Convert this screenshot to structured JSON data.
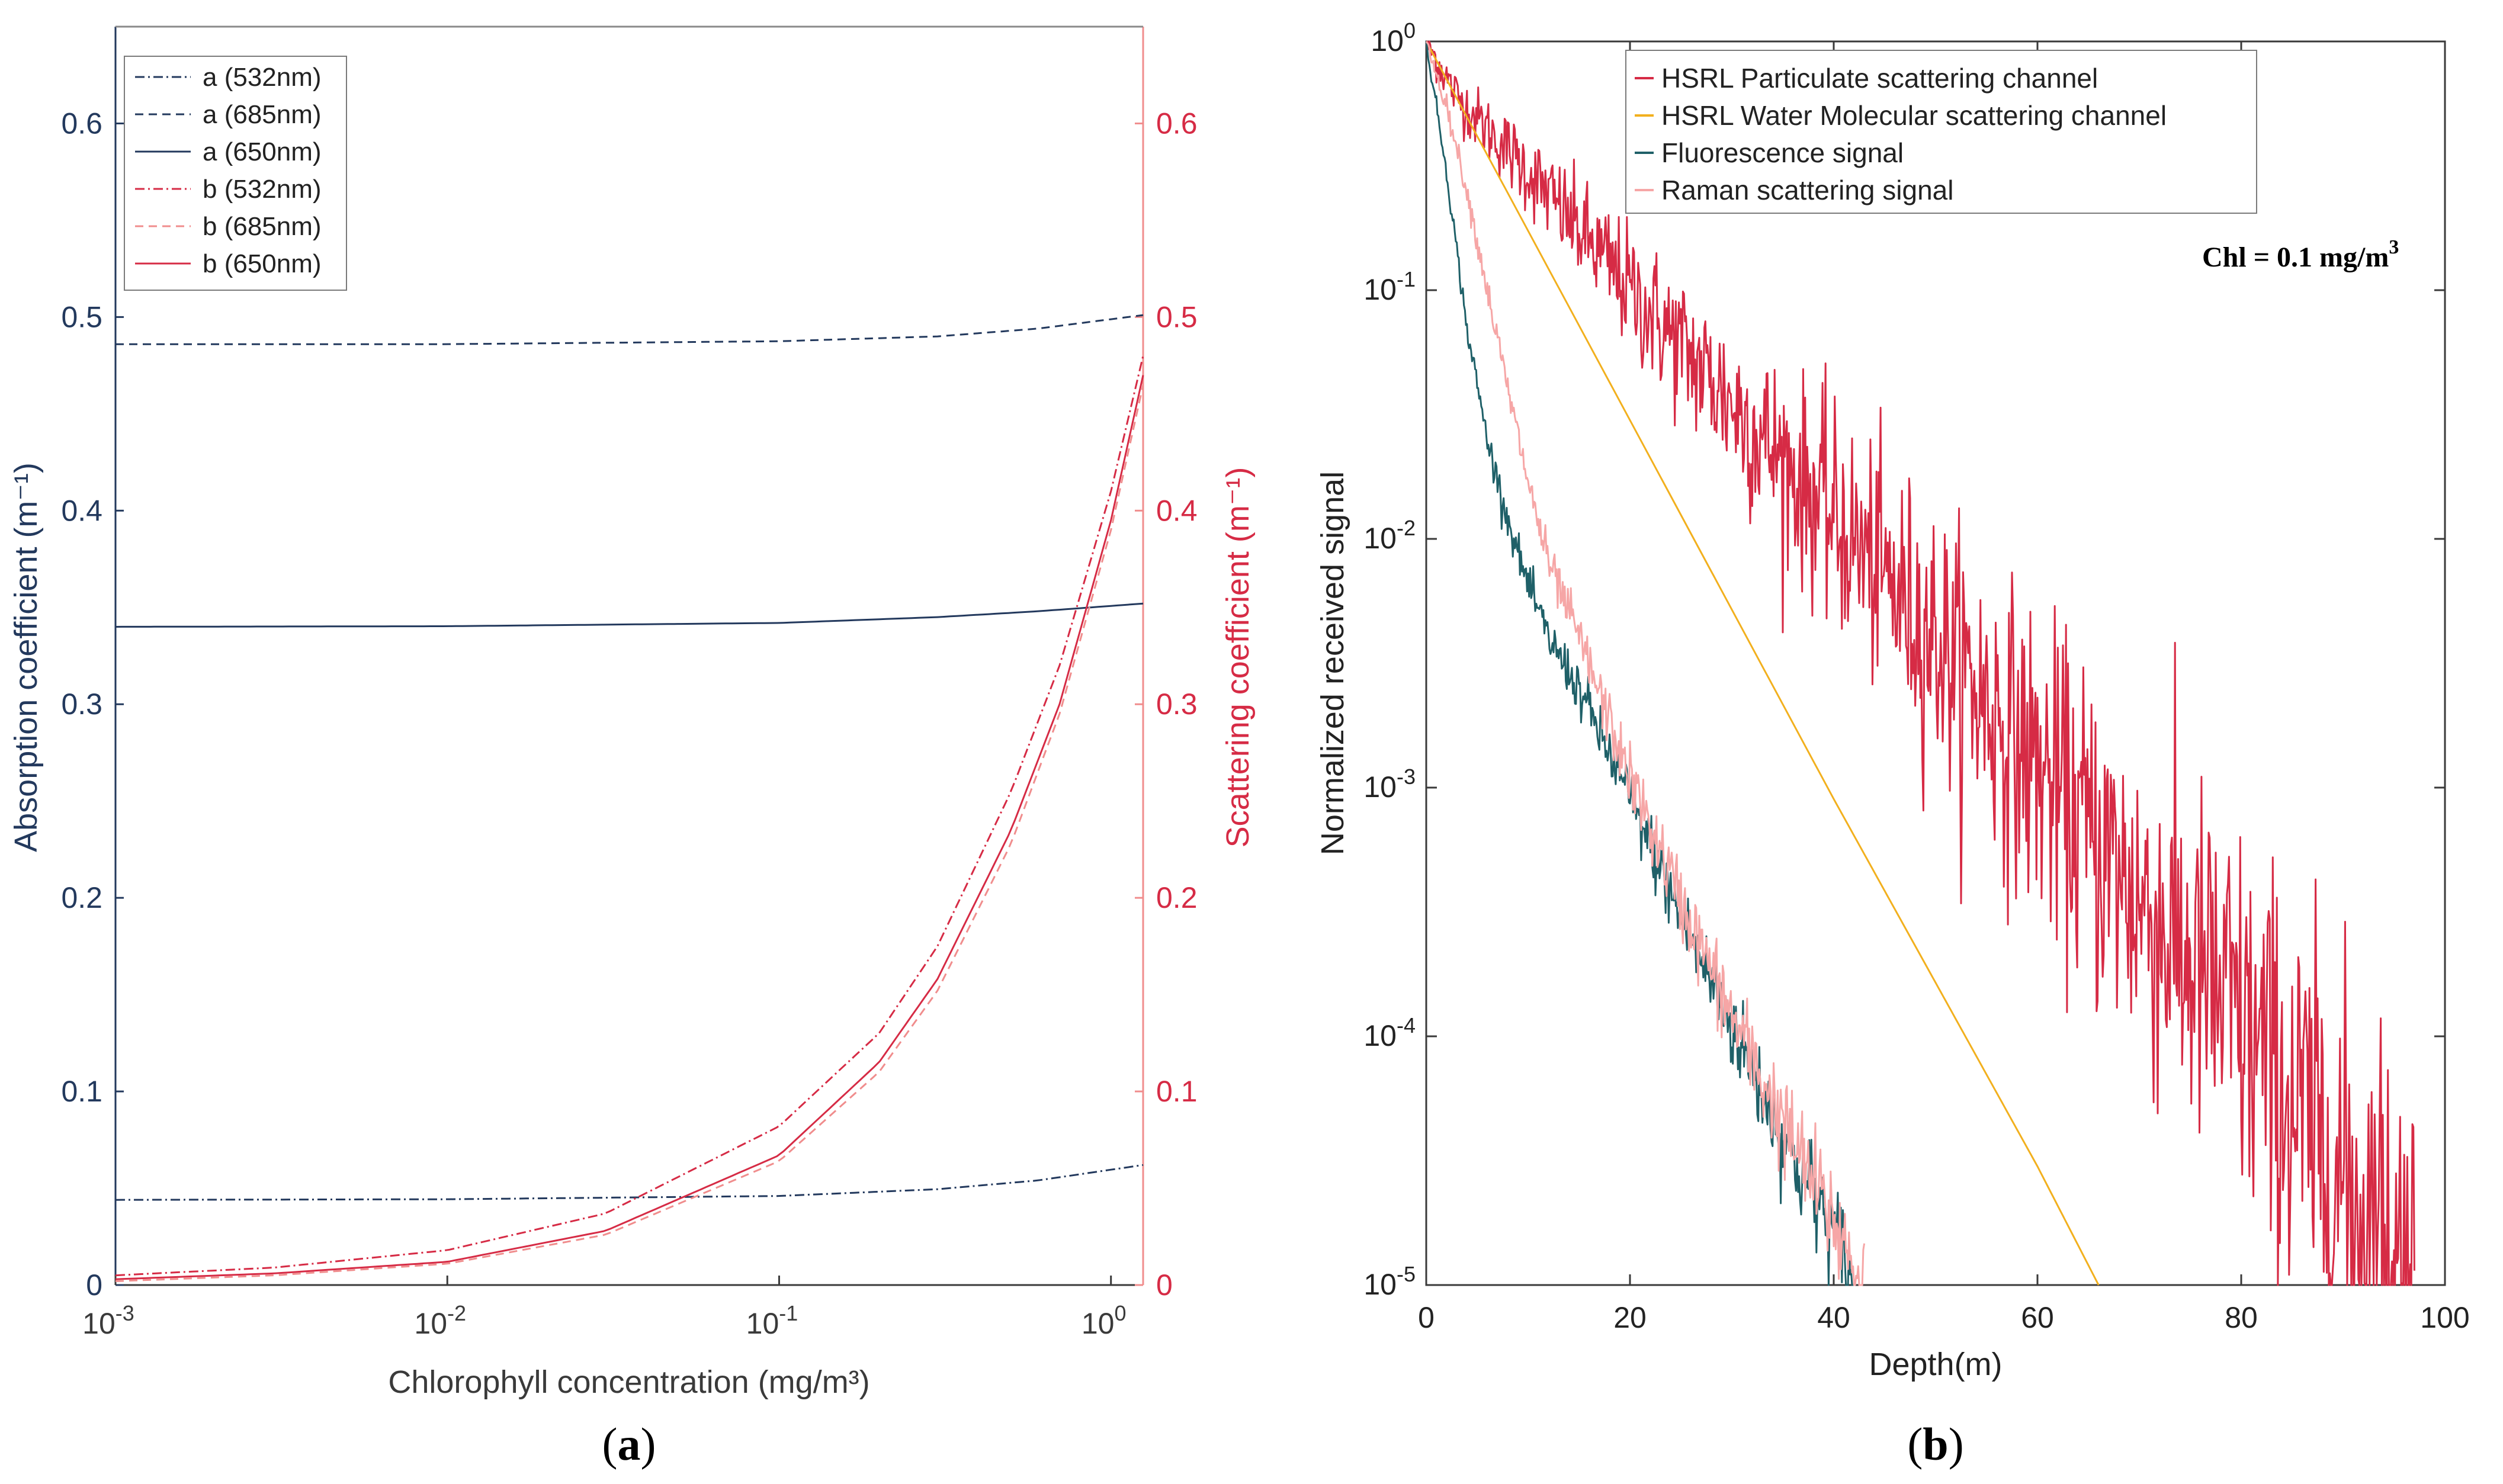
{
  "colors": {
    "navy": "#23395d",
    "red": "#d62b45",
    "pink": "#f08d8d",
    "orange": "#f2b01e",
    "teal": "#1f6068",
    "lightpink": "#f6a6a6",
    "axis_gray": "#3a3a3a"
  },
  "chart_data": [
    {
      "type": "line",
      "panel_label": "a",
      "x_scale": "log",
      "xlabel": "Chlorophyll concentration (mg/m³)",
      "ylabel_left": "Absorption coefficient (m⁻¹)",
      "ylabel_right": "Scattering coefficient (m⁻¹)",
      "xlim": [
        0.001,
        1.25
      ],
      "ylim": [
        0,
        0.65
      ],
      "x_ticks": [
        {
          "value": 0.001,
          "base": "10",
          "exp": "-3"
        },
        {
          "value": 0.01,
          "base": "10",
          "exp": "-2"
        },
        {
          "value": 0.1,
          "base": "10",
          "exp": "-1"
        },
        {
          "value": 1,
          "base": "10",
          "exp": "0"
        }
      ],
      "y_ticks": [
        0,
        0.1,
        0.2,
        0.3,
        0.4,
        0.5,
        0.6
      ],
      "y_tick_labels": [
        "0",
        "0.1",
        "0.2",
        "0.3",
        "0.4",
        "0.5",
        "0.6"
      ],
      "legend_position": "top-left",
      "series": [
        {
          "name": "a (532nm)",
          "axis": "left",
          "color": "#23395d",
          "dash": "dashdot",
          "x": [
            0.001,
            0.01,
            0.1,
            0.3,
            0.6,
            1.25
          ],
          "y": [
            0.044,
            0.0443,
            0.046,
            0.0495,
            0.054,
            0.062
          ]
        },
        {
          "name": "a (685nm)",
          "axis": "left",
          "color": "#23395d",
          "dash": "dashed",
          "x": [
            0.001,
            0.01,
            0.1,
            0.3,
            0.6,
            1.25
          ],
          "y": [
            0.486,
            0.486,
            0.4875,
            0.49,
            0.494,
            0.501
          ]
        },
        {
          "name": "a (650nm)",
          "axis": "left",
          "color": "#23395d",
          "dash": "solid",
          "x": [
            0.001,
            0.01,
            0.1,
            0.3,
            0.6,
            1.25
          ],
          "y": [
            0.34,
            0.3403,
            0.342,
            0.345,
            0.348,
            0.352
          ]
        },
        {
          "name": "b (532nm)",
          "axis": "right",
          "color": "#d62b45",
          "dash": "dashdot",
          "x": [
            0.001,
            0.003,
            0.01,
            0.03,
            0.1,
            0.2,
            0.3,
            0.5,
            0.7,
            1.0,
            1.25
          ],
          "y": [
            0.005,
            0.009,
            0.018,
            0.037,
            0.082,
            0.13,
            0.175,
            0.255,
            0.32,
            0.41,
            0.48
          ]
        },
        {
          "name": "b (685nm)",
          "axis": "right",
          "color": "#f08d8d",
          "dash": "dashed",
          "x": [
            0.001,
            0.003,
            0.01,
            0.03,
            0.1,
            0.2,
            0.3,
            0.5,
            0.7,
            1.0,
            1.25
          ],
          "y": [
            0.002,
            0.005,
            0.011,
            0.026,
            0.064,
            0.11,
            0.152,
            0.228,
            0.295,
            0.39,
            0.465
          ]
        },
        {
          "name": "b (650nm)",
          "axis": "right",
          "color": "#d62b45",
          "dash": "solid",
          "x": [
            0.001,
            0.003,
            0.01,
            0.03,
            0.1,
            0.2,
            0.3,
            0.5,
            0.7,
            1.0,
            1.25
          ],
          "y": [
            0.003,
            0.006,
            0.012,
            0.028,
            0.067,
            0.115,
            0.158,
            0.235,
            0.3,
            0.395,
            0.47
          ]
        }
      ]
    },
    {
      "type": "line",
      "panel_label": "b",
      "y_scale": "log",
      "xlabel": "Depth(m)",
      "ylabel": "Normalized received signal",
      "xlim": [
        0,
        100
      ],
      "ylim": [
        1e-05,
        1
      ],
      "x_ticks": [
        0,
        20,
        40,
        60,
        80,
        100
      ],
      "x_tick_labels": [
        "0",
        "20",
        "40",
        "60",
        "80",
        "100"
      ],
      "y_ticks": [
        {
          "value": 1,
          "base": "10",
          "exp": "0"
        },
        {
          "value": 0.1,
          "base": "10",
          "exp": "-1"
        },
        {
          "value": 0.01,
          "base": "10",
          "exp": "-2"
        },
        {
          "value": 0.001,
          "base": "10",
          "exp": "-3"
        },
        {
          "value": 0.0001,
          "base": "10",
          "exp": "-4"
        },
        {
          "value": 1e-05,
          "base": "10",
          "exp": "-5"
        }
      ],
      "annotation": {
        "text": "Chl = 0.1 mg/m",
        "sup": "3",
        "position": "top-right"
      },
      "legend_position": "top",
      "series": [
        {
          "name": "HSRL Particulate scattering channel",
          "color": "#d62b45",
          "noisy": true,
          "x": [
            0,
            3,
            10,
            20,
            30,
            40,
            50,
            60,
            70,
            80,
            90,
            97
          ],
          "y": [
            1,
            0.6,
            0.3,
            0.1,
            0.035,
            0.012,
            0.004,
            0.0012,
            0.00035,
            0.00011,
            2.5e-05,
            1e-05
          ]
        },
        {
          "name": "HSRL Water Molecular scattering channel",
          "color": "#f2b01e",
          "noisy": false,
          "x": [
            0,
            20,
            40,
            60,
            66
          ],
          "y": [
            1,
            0.03,
            0.0009,
            3e-05,
            1e-05
          ]
        },
        {
          "name": "Fluorescence signal",
          "color": "#1f6068",
          "noisy": true,
          "x": [
            0,
            2,
            4,
            6,
            8,
            10,
            12,
            15,
            20,
            25,
            30,
            35,
            40,
            42
          ],
          "y": [
            1,
            0.3,
            0.07,
            0.025,
            0.012,
            0.0065,
            0.004,
            0.0025,
            0.0009,
            0.0003,
            0.00011,
            4e-05,
            1.6e-05,
            1e-05
          ]
        },
        {
          "name": "Raman scattering signal",
          "color": "#f6a6a6",
          "noisy": true,
          "x": [
            0,
            2,
            4,
            6,
            8,
            10,
            12,
            15,
            20,
            25,
            30,
            35,
            40,
            43
          ],
          "y": [
            1,
            0.55,
            0.25,
            0.1,
            0.04,
            0.017,
            0.008,
            0.004,
            0.0011,
            0.00035,
            0.00012,
            4.5e-05,
            1.8e-05,
            1e-05
          ]
        }
      ]
    }
  ]
}
